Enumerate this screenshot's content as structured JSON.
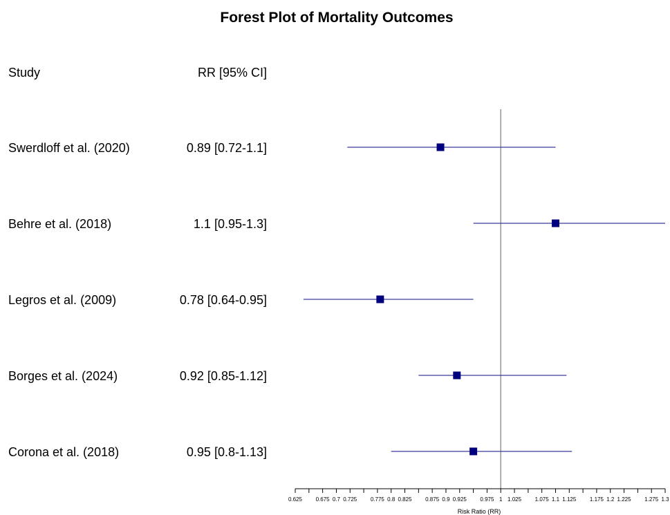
{
  "chart_data": {
    "type": "forest",
    "title": "Forest Plot of Mortality Outcomes",
    "column_headers": {
      "study": "Study",
      "estimate": "RR [95% CI]"
    },
    "xlabel": "Risk Ratio (RR)",
    "xlim": [
      0.625,
      1.3
    ],
    "xticks": [
      0.625,
      0.65,
      0.675,
      0.7,
      0.725,
      0.75,
      0.775,
      0.8,
      0.825,
      0.85,
      0.875,
      0.9,
      0.925,
      0.95,
      0.975,
      1,
      1.025,
      1.05,
      1.075,
      1.1,
      1.125,
      1.15,
      1.175,
      1.2,
      1.225,
      1.25,
      1.275,
      1.3
    ],
    "xtick_labels": [
      "0.625",
      "",
      "0.675",
      "0.7",
      "0.725",
      "",
      "0.775",
      "0.8",
      "0.825",
      "",
      "0.875",
      "0.9",
      "0.925",
      "",
      "0.975",
      "1",
      "1.025",
      "",
      "1.075",
      "1.1",
      "1.125",
      "",
      "1.175",
      "1.2",
      "1.225",
      "",
      "1.275",
      "1.3"
    ],
    "reference_line": 1,
    "point_color": "#00007f",
    "ci_color": "#3a3a9e",
    "reference_color": "#8c8c8c",
    "studies": [
      {
        "study": "Swerdloff et al. (2020)",
        "label": "0.89 [0.72-1.1]",
        "rr": 0.89,
        "lower": 0.72,
        "upper": 1.1
      },
      {
        "study": "Behre et al. (2018)",
        "label": "1.1 [0.95-1.3]",
        "rr": 1.1,
        "lower": 0.95,
        "upper": 1.3
      },
      {
        "study": "Legros et al. (2009)",
        "label": "0.78 [0.64-0.95]",
        "rr": 0.78,
        "lower": 0.64,
        "upper": 0.95
      },
      {
        "study": "Borges et al. (2024)",
        "label": "0.92 [0.85-1.12]",
        "rr": 0.92,
        "lower": 0.85,
        "upper": 1.12
      },
      {
        "study": "Corona et al. (2018)",
        "label": "0.95 [0.8-1.13]",
        "rr": 0.95,
        "lower": 0.8,
        "upper": 1.13
      }
    ]
  }
}
